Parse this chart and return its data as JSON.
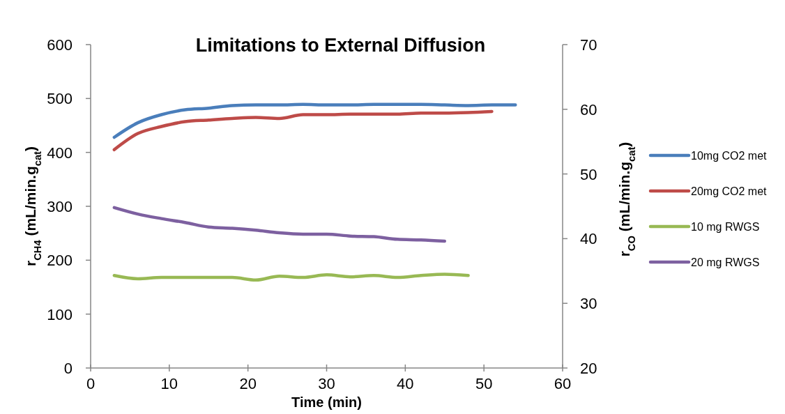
{
  "chart_data": {
    "type": "line",
    "title": "Limitations to External Diffusion",
    "xlabel": "Time (min)",
    "ylabel": "r$_{CH4}$ (mL/min.g$_{cat}$)",
    "y2label": "r$_{CO}$ (mL/min.g$_{cat}$)",
    "xlim": [
      0,
      60
    ],
    "xticks": [
      0,
      10,
      20,
      30,
      40,
      50,
      60
    ],
    "ylim": [
      0,
      600
    ],
    "yticks": [
      0,
      100,
      200,
      300,
      400,
      500,
      600
    ],
    "y2lim": [
      20,
      70
    ],
    "y2ticks": [
      20,
      30,
      40,
      50,
      60,
      70
    ],
    "grid": false,
    "legend": "right",
    "marker": "none",
    "line_style": "solid",
    "series": [
      {
        "name": "10mg CO2 met",
        "color": "#4a7ebb",
        "x": [
          3,
          6,
          9,
          12,
          15,
          18,
          21,
          24,
          27,
          30,
          33,
          36,
          39,
          42,
          45,
          48,
          51,
          54
        ],
        "values": [
          428,
          455,
          470,
          479,
          482,
          487,
          488,
          488,
          489,
          488,
          488,
          489,
          489,
          489,
          488,
          487,
          488,
          488
        ]
      },
      {
        "name": "20mg CO2 met",
        "color": "#be4b48",
        "x": [
          3,
          6,
          9,
          12,
          15,
          18,
          21,
          24,
          27,
          30,
          33,
          36,
          39,
          42,
          45,
          48,
          51
        ],
        "values": [
          405,
          435,
          448,
          457,
          460,
          463,
          465,
          463,
          470,
          470,
          471,
          471,
          471,
          473,
          473,
          474,
          476
        ]
      },
      {
        "name": "10 mg RWGS",
        "color": "#98b954",
        "axis": "y2",
        "x": [
          3,
          6,
          9,
          12,
          15,
          18,
          21,
          24,
          27,
          30,
          33,
          36,
          39,
          42,
          45,
          48
        ],
        "values": [
          34.3,
          33.8,
          34.0,
          34.0,
          34.0,
          34.0,
          33.6,
          34.2,
          34.0,
          34.4,
          34.1,
          34.3,
          34.0,
          34.3,
          34.5,
          34.3
        ]
      },
      {
        "name": "20 mg RWGS",
        "color": "#7d60a0",
        "axis": "y2",
        "x": [
          3,
          6,
          9,
          12,
          15,
          18,
          21,
          24,
          27,
          30,
          33,
          36,
          39,
          42,
          45
        ],
        "values": [
          44.8,
          43.8,
          43.1,
          42.5,
          41.8,
          41.6,
          41.3,
          40.9,
          40.7,
          40.7,
          40.4,
          40.3,
          39.9,
          39.8,
          39.6
        ]
      }
    ]
  }
}
